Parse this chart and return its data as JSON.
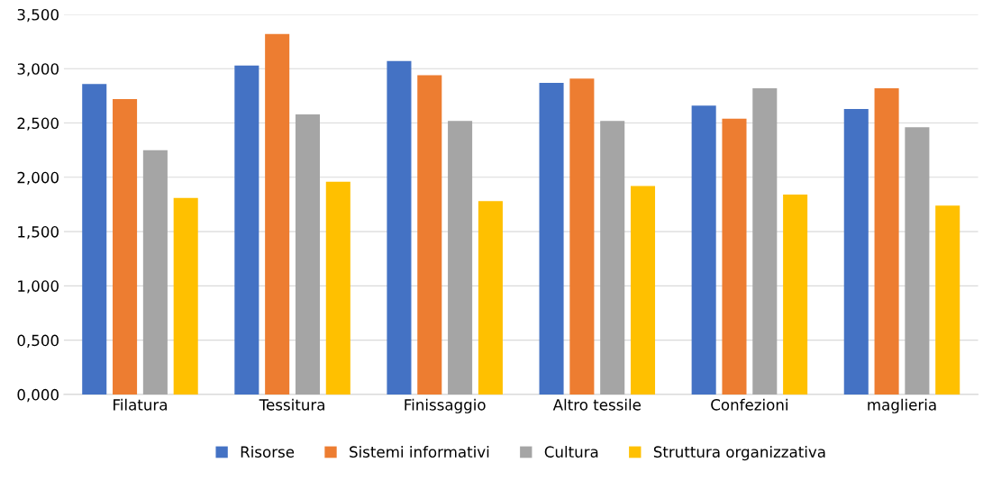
{
  "chart_data": {
    "type": "bar",
    "categories": [
      "Filatura",
      "Tessitura",
      "Finissaggio",
      "Altro tessile",
      "Confezioni",
      "maglieria"
    ],
    "series": [
      {
        "name": "Risorse",
        "color": "#4472c4",
        "values": [
          2.86,
          3.03,
          3.07,
          2.87,
          2.66,
          2.63
        ]
      },
      {
        "name": "Sistemi informativi",
        "color": "#ed7d31",
        "values": [
          2.72,
          3.32,
          2.94,
          2.91,
          2.54,
          2.82
        ]
      },
      {
        "name": "Cultura",
        "color": "#a5a5a5",
        "values": [
          2.25,
          2.58,
          2.52,
          2.52,
          2.82,
          2.46
        ]
      },
      {
        "name": "Struttura organizzativa",
        "color": "#ffc000",
        "values": [
          1.81,
          1.96,
          1.78,
          1.92,
          1.84,
          1.74
        ]
      }
    ],
    "ylim": [
      0,
      3.5
    ],
    "yticks": [
      {
        "value": 0,
        "label": "0,000"
      },
      {
        "value": 0.5,
        "label": "0,500"
      },
      {
        "value": 1,
        "label": "1,000"
      },
      {
        "value": 1.5,
        "label": "1,500"
      },
      {
        "value": 2,
        "label": "2,000"
      },
      {
        "value": 2.5,
        "label": "2,500"
      },
      {
        "value": 3,
        "label": "3,000"
      },
      {
        "value": 3.5,
        "label": "3,500"
      }
    ],
    "grid": "y",
    "legend": "bottom"
  }
}
